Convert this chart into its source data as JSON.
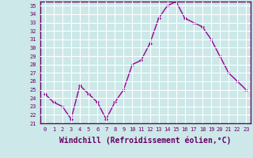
{
  "x": [
    0,
    1,
    2,
    3,
    4,
    5,
    6,
    7,
    8,
    9,
    10,
    11,
    12,
    13,
    14,
    15,
    16,
    17,
    18,
    19,
    20,
    21,
    22,
    23
  ],
  "y": [
    24.5,
    23.5,
    23.0,
    21.5,
    25.5,
    24.5,
    23.5,
    21.5,
    23.5,
    25.0,
    28.0,
    28.5,
    30.5,
    33.5,
    35.0,
    35.5,
    33.5,
    33.0,
    32.5,
    31.0,
    29.0,
    27.0,
    26.0,
    25.0
  ],
  "line_color": "#990099",
  "marker": "D",
  "marker_size": 2,
  "line_width": 1.0,
  "xlabel": "Windchill (Refroidissement éolien,°C)",
  "xlabel_fontsize": 7,
  "ylim": [
    21,
    35.5
  ],
  "xlim": [
    -0.5,
    23.5
  ],
  "yticks": [
    21,
    22,
    23,
    24,
    25,
    26,
    27,
    28,
    29,
    30,
    31,
    32,
    33,
    34,
    35
  ],
  "xticks": [
    0,
    1,
    2,
    3,
    4,
    5,
    6,
    7,
    8,
    9,
    10,
    11,
    12,
    13,
    14,
    15,
    16,
    17,
    18,
    19,
    20,
    21,
    22,
    23
  ],
  "xtick_fontsize": 5,
  "ytick_fontsize": 5,
  "bg_color": "#cce8e8",
  "grid_color": "#ffffff",
  "spine_color": "#660066",
  "xlabel_color": "#660066",
  "tick_color": "#660066"
}
